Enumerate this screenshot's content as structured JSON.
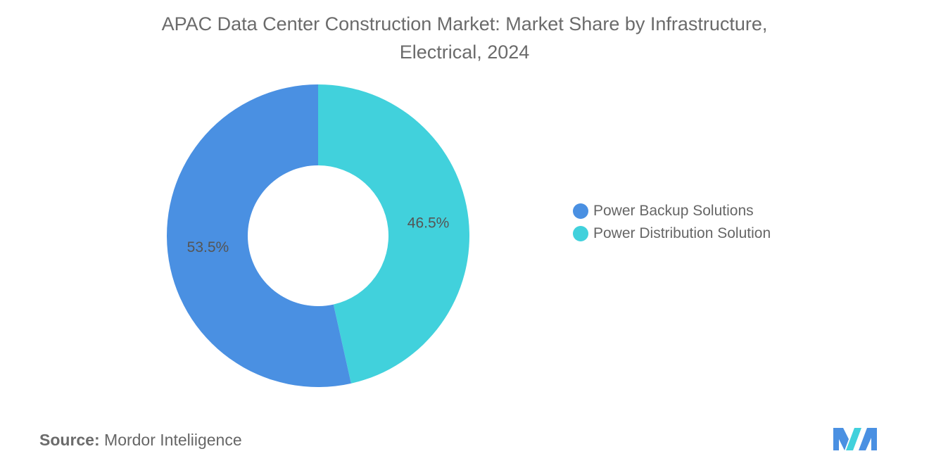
{
  "chart_data": {
    "type": "pie",
    "variant": "donut",
    "title_lines": [
      "APAC Data Center Construction Market: Market Share by Infrastructure,",
      "Electrical, 2024"
    ],
    "series": [
      {
        "name": "Power Distribution Solution",
        "value": 46.5,
        "label": "46.5%",
        "color": "#41d1dc"
      },
      {
        "name": "Power Backup Solutions",
        "value": 53.5,
        "label": "53.5%",
        "color": "#4a90e2"
      }
    ],
    "legend": {
      "placement": "right",
      "items": [
        {
          "label": "Power Backup Solutions",
          "color": "#4a90e2"
        },
        {
          "label": "Power Distribution Solution",
          "color": "#41d1dc"
        }
      ]
    }
  },
  "footer": {
    "source_prefix": "Source:",
    "source_text": "Mordor Inteliigence"
  },
  "logo": {
    "icon": "mordor-intelligence-logo-icon",
    "colors": [
      "#4a90e2",
      "#41d1dc"
    ]
  }
}
